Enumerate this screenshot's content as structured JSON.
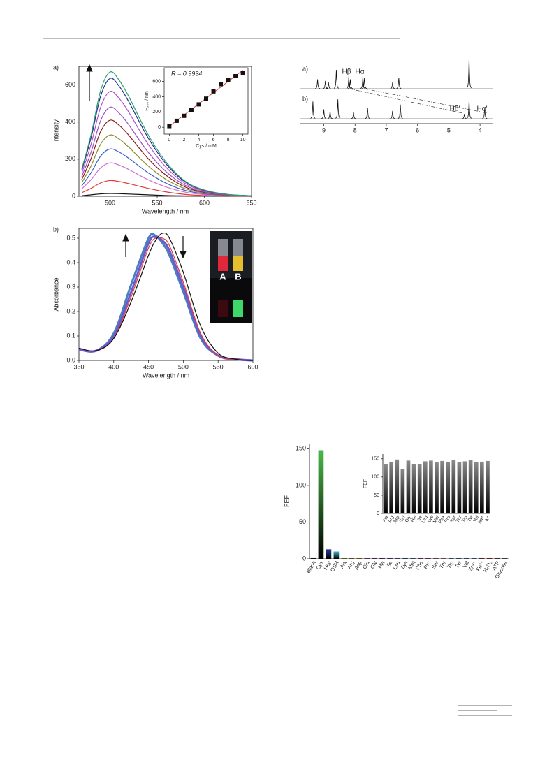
{
  "chart_data": [
    {
      "type": "line",
      "panel_label": "a)",
      "xlabel": "Wavelength / nm",
      "ylabel": "Intensity",
      "x": [
        470,
        480,
        490,
        500,
        510,
        520,
        540,
        560,
        580,
        600,
        625,
        650
      ],
      "xlim": [
        467,
        650
      ],
      "xticks": [
        500,
        550,
        600,
        650
      ],
      "ylim": [
        0,
        700
      ],
      "yticks": [
        0,
        200,
        400,
        600
      ],
      "series": [
        {
          "color": "#111111",
          "values": [
            3,
            8,
            13,
            15,
            14,
            12,
            8,
            4,
            2,
            1,
            0,
            0
          ]
        },
        {
          "color": "#e53935",
          "values": [
            19,
            43,
            72,
            85,
            79,
            68,
            43,
            23,
            10,
            4,
            1,
            0
          ]
        },
        {
          "color": "#d070d0",
          "values": [
            40,
            90,
            153,
            180,
            167,
            144,
            90,
            49,
            22,
            9,
            3,
            1
          ]
        },
        {
          "color": "#3a5fcd",
          "values": [
            56,
            128,
            217,
            255,
            237,
            204,
            128,
            69,
            31,
            13,
            4,
            1
          ]
        },
        {
          "color": "#8a8a2a",
          "values": [
            73,
            165,
            281,
            330,
            307,
            264,
            165,
            89,
            40,
            17,
            5,
            2
          ]
        },
        {
          "color": "#8b1a1a",
          "values": [
            90,
            205,
            349,
            410,
            381,
            328,
            205,
            111,
            49,
            21,
            6,
            2
          ]
        },
        {
          "color": "#9b4fc0",
          "values": [
            106,
            240,
            408,
            480,
            446,
            384,
            240,
            130,
            58,
            24,
            7,
            2
          ]
        },
        {
          "color": "#b04fd0",
          "values": [
            124,
            283,
            480,
            565,
            525,
            452,
            283,
            153,
            68,
            28,
            8,
            3
          ]
        },
        {
          "color": "#1e2f8a",
          "values": [
            140,
            318,
            540,
            635,
            591,
            508,
            318,
            171,
            76,
            32,
            10,
            3
          ]
        },
        {
          "color": "#2e9e6a",
          "values": [
            147,
            335,
            570,
            670,
            623,
            536,
            335,
            181,
            80,
            34,
            10,
            3
          ]
        }
      ]
    },
    {
      "type": "scatter",
      "xlabel": "Cys / mM",
      "ylabel": "F₅₀₀ / nm",
      "annotation": "R = 0.9934",
      "x": [
        0,
        1,
        2,
        3,
        4,
        5,
        6,
        7,
        8,
        9,
        10
      ],
      "values": [
        15,
        85,
        150,
        225,
        300,
        375,
        470,
        565,
        620,
        670,
        710
      ],
      "color": "#111111",
      "fit_color": "#e53935",
      "xlim": [
        -0.7,
        10.7
      ],
      "xticks": [
        0,
        2,
        4,
        6,
        8,
        10
      ],
      "ylim": [
        -90,
        780
      ],
      "yticks": [
        0,
        200,
        400,
        600
      ]
    },
    {
      "type": "line",
      "panel_label": "b)",
      "xlabel": "Wavelength / nm",
      "ylabel": "Absorbance",
      "annotations": [
        "A",
        "B"
      ],
      "x": [
        350,
        375,
        400,
        425,
        450,
        460,
        470,
        480,
        500,
        525,
        550,
        575,
        600
      ],
      "xlim": [
        350,
        600
      ],
      "xticks": [
        350,
        400,
        450,
        500,
        550,
        600
      ],
      "ylim": [
        0,
        0.54
      ],
      "yticks": [
        {
          "value": 0,
          "label": "0.0"
        },
        0.1,
        0.2,
        0.3,
        0.4,
        0.5
      ],
      "series": [
        {
          "color": "#4a7fc0",
          "values": [
            0.045,
            0.04,
            0.11,
            0.31,
            0.5,
            0.51,
            0.48,
            0.43,
            0.28,
            0.09,
            0.02,
            0.005,
            0
          ]
        },
        {
          "color": "#6a5acd",
          "values": [
            0.045,
            0.04,
            0.1,
            0.28,
            0.48,
            0.505,
            0.49,
            0.45,
            0.3,
            0.1,
            0.02,
            0.005,
            0
          ]
        },
        {
          "color": "#e53935",
          "values": [
            0.05,
            0.04,
            0.09,
            0.26,
            0.46,
            0.5,
            0.5,
            0.47,
            0.32,
            0.11,
            0.02,
            0.005,
            0
          ]
        },
        {
          "color": "#111111",
          "values": [
            0.05,
            0.04,
            0.09,
            0.24,
            0.43,
            0.49,
            0.52,
            0.5,
            0.36,
            0.14,
            0.03,
            0.005,
            0
          ]
        }
      ]
    },
    {
      "type": "spectrum",
      "xlim": [
        9.75,
        3.6
      ],
      "xticks": [
        9,
        8,
        7,
        6,
        5,
        4
      ],
      "annotations": [
        "Hβ",
        "Hα",
        "Hβ′",
        "Hα′"
      ],
      "series": [
        {
          "name": "a)",
          "x": [
            9.2,
            8.95,
            8.85,
            8.6,
            8.2,
            8.15,
            7.75,
            7.7,
            6.8,
            6.6,
            4.35
          ],
          "values": [
            0.3,
            0.25,
            0.2,
            0.6,
            0.4,
            0.3,
            0.4,
            0.35,
            0.2,
            0.35,
            1.0
          ]
        },
        {
          "name": "b)",
          "x": [
            9.35,
            9.0,
            8.8,
            8.55,
            8.05,
            7.6,
            6.8,
            6.55,
            4.5,
            4.35,
            3.85
          ],
          "values": [
            0.55,
            0.3,
            0.25,
            0.62,
            0.2,
            0.35,
            0.25,
            0.45,
            0.15,
            0.6,
            0.35
          ]
        }
      ]
    },
    {
      "type": "bar",
      "ylabel": "FEF",
      "ylim": [
        0,
        157
      ],
      "yticks": [
        0,
        50,
        100,
        150
      ],
      "categories": [
        "Blank",
        "Cys",
        "Hcy",
        "GSH",
        "Ala",
        "Arg",
        "Asp",
        "Glu",
        "Gly",
        "His",
        "Ile",
        "Leu",
        "Lys",
        "Met",
        "Phe",
        "Pro",
        "Ser",
        "Thr",
        "Trp",
        "Tyr",
        "Val",
        "Zn²⁺",
        "Fe³⁺",
        "H₂O₂",
        "ATP",
        "Glucose"
      ],
      "values": [
        1,
        148,
        13,
        10,
        1,
        1,
        1,
        1,
        1,
        1,
        1,
        1,
        1,
        1,
        1,
        1,
        1,
        1,
        1,
        1,
        1,
        1,
        1,
        1,
        1,
        1
      ],
      "colors": [
        "#222222",
        "#4cb848",
        "#2b3a9b",
        "#3fb3c4",
        "#8bc34a",
        "#a0a060",
        "#c8a040",
        "#9a6aa0",
        "#7b4f9d",
        "#8e3d8e",
        "#6a5acd",
        "#9c5fa0",
        "#4a6fa5",
        "#6b8e9f",
        "#9b59b6",
        "#b06080",
        "#c080a0",
        "#d08aa0",
        "#7090c0",
        "#40a0a0",
        "#6080b0",
        "#5a8fc0",
        "#a05050",
        "#c04040",
        "#806060",
        "#808080"
      ]
    },
    {
      "type": "bar",
      "ylabel": "FEF",
      "ylim": [
        0,
        163
      ],
      "yticks": [
        0,
        50,
        100,
        150
      ],
      "categories": [
        "Ala",
        "Arg",
        "Asp",
        "Glu",
        "Gly",
        "His",
        "Ile",
        "Leu",
        "Lys",
        "Met",
        "Phe",
        "Pro",
        "Ser",
        "Thr",
        "Trp",
        "Tyr",
        "Val",
        "Na⁺",
        "K⁺"
      ],
      "values": [
        135,
        142,
        148,
        122,
        145,
        136,
        135,
        143,
        145,
        140,
        144,
        142,
        146,
        140,
        143,
        146,
        140,
        142,
        144
      ],
      "color": "#8a8a8a"
    }
  ]
}
